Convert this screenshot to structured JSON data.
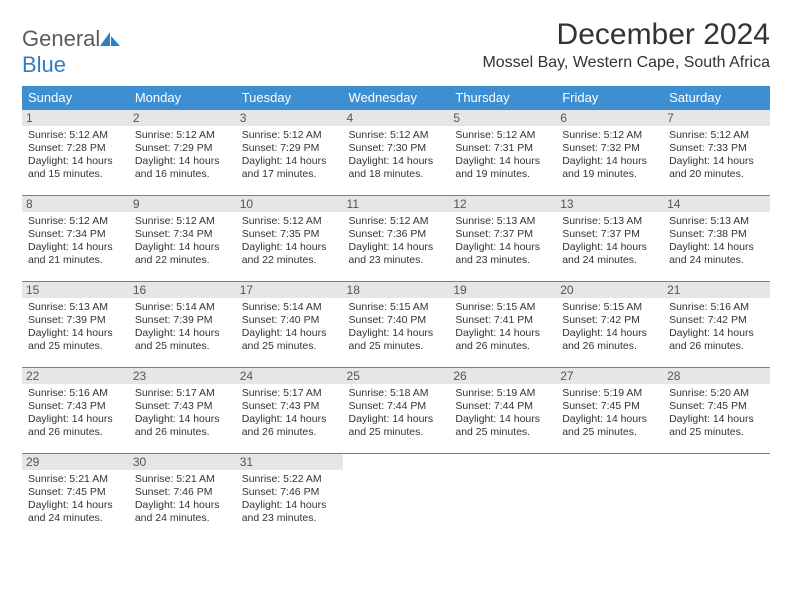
{
  "brand": {
    "text1": "General",
    "text2": "Blue"
  },
  "title": "December 2024",
  "location": "Mossel Bay, Western Cape, South Africa",
  "colors": {
    "header_bg": "#3d8fd1",
    "header_text": "#ffffff",
    "daynum_bg": "#e6e6e6",
    "border": "#3d8fd1",
    "brand_gray": "#5a5a5a",
    "brand_blue": "#2f7fc2"
  },
  "day_headers": [
    "Sunday",
    "Monday",
    "Tuesday",
    "Wednesday",
    "Thursday",
    "Friday",
    "Saturday"
  ],
  "weeks": [
    [
      {
        "n": "1",
        "sr": "5:12 AM",
        "ss": "7:28 PM",
        "dl": "14 hours and 15 minutes."
      },
      {
        "n": "2",
        "sr": "5:12 AM",
        "ss": "7:29 PM",
        "dl": "14 hours and 16 minutes."
      },
      {
        "n": "3",
        "sr": "5:12 AM",
        "ss": "7:29 PM",
        "dl": "14 hours and 17 minutes."
      },
      {
        "n": "4",
        "sr": "5:12 AM",
        "ss": "7:30 PM",
        "dl": "14 hours and 18 minutes."
      },
      {
        "n": "5",
        "sr": "5:12 AM",
        "ss": "7:31 PM",
        "dl": "14 hours and 19 minutes."
      },
      {
        "n": "6",
        "sr": "5:12 AM",
        "ss": "7:32 PM",
        "dl": "14 hours and 19 minutes."
      },
      {
        "n": "7",
        "sr": "5:12 AM",
        "ss": "7:33 PM",
        "dl": "14 hours and 20 minutes."
      }
    ],
    [
      {
        "n": "8",
        "sr": "5:12 AM",
        "ss": "7:34 PM",
        "dl": "14 hours and 21 minutes."
      },
      {
        "n": "9",
        "sr": "5:12 AM",
        "ss": "7:34 PM",
        "dl": "14 hours and 22 minutes."
      },
      {
        "n": "10",
        "sr": "5:12 AM",
        "ss": "7:35 PM",
        "dl": "14 hours and 22 minutes."
      },
      {
        "n": "11",
        "sr": "5:12 AM",
        "ss": "7:36 PM",
        "dl": "14 hours and 23 minutes."
      },
      {
        "n": "12",
        "sr": "5:13 AM",
        "ss": "7:37 PM",
        "dl": "14 hours and 23 minutes."
      },
      {
        "n": "13",
        "sr": "5:13 AM",
        "ss": "7:37 PM",
        "dl": "14 hours and 24 minutes."
      },
      {
        "n": "14",
        "sr": "5:13 AM",
        "ss": "7:38 PM",
        "dl": "14 hours and 24 minutes."
      }
    ],
    [
      {
        "n": "15",
        "sr": "5:13 AM",
        "ss": "7:39 PM",
        "dl": "14 hours and 25 minutes."
      },
      {
        "n": "16",
        "sr": "5:14 AM",
        "ss": "7:39 PM",
        "dl": "14 hours and 25 minutes."
      },
      {
        "n": "17",
        "sr": "5:14 AM",
        "ss": "7:40 PM",
        "dl": "14 hours and 25 minutes."
      },
      {
        "n": "18",
        "sr": "5:15 AM",
        "ss": "7:40 PM",
        "dl": "14 hours and 25 minutes."
      },
      {
        "n": "19",
        "sr": "5:15 AM",
        "ss": "7:41 PM",
        "dl": "14 hours and 26 minutes."
      },
      {
        "n": "20",
        "sr": "5:15 AM",
        "ss": "7:42 PM",
        "dl": "14 hours and 26 minutes."
      },
      {
        "n": "21",
        "sr": "5:16 AM",
        "ss": "7:42 PM",
        "dl": "14 hours and 26 minutes."
      }
    ],
    [
      {
        "n": "22",
        "sr": "5:16 AM",
        "ss": "7:43 PM",
        "dl": "14 hours and 26 minutes."
      },
      {
        "n": "23",
        "sr": "5:17 AM",
        "ss": "7:43 PM",
        "dl": "14 hours and 26 minutes."
      },
      {
        "n": "24",
        "sr": "5:17 AM",
        "ss": "7:43 PM",
        "dl": "14 hours and 26 minutes."
      },
      {
        "n": "25",
        "sr": "5:18 AM",
        "ss": "7:44 PM",
        "dl": "14 hours and 25 minutes."
      },
      {
        "n": "26",
        "sr": "5:19 AM",
        "ss": "7:44 PM",
        "dl": "14 hours and 25 minutes."
      },
      {
        "n": "27",
        "sr": "5:19 AM",
        "ss": "7:45 PM",
        "dl": "14 hours and 25 minutes."
      },
      {
        "n": "28",
        "sr": "5:20 AM",
        "ss": "7:45 PM",
        "dl": "14 hours and 25 minutes."
      }
    ],
    [
      {
        "n": "29",
        "sr": "5:21 AM",
        "ss": "7:45 PM",
        "dl": "14 hours and 24 minutes."
      },
      {
        "n": "30",
        "sr": "5:21 AM",
        "ss": "7:46 PM",
        "dl": "14 hours and 24 minutes."
      },
      {
        "n": "31",
        "sr": "5:22 AM",
        "ss": "7:46 PM",
        "dl": "14 hours and 23 minutes."
      },
      null,
      null,
      null,
      null
    ]
  ],
  "labels": {
    "sunrise": "Sunrise:",
    "sunset": "Sunset:",
    "daylight": "Daylight:"
  }
}
